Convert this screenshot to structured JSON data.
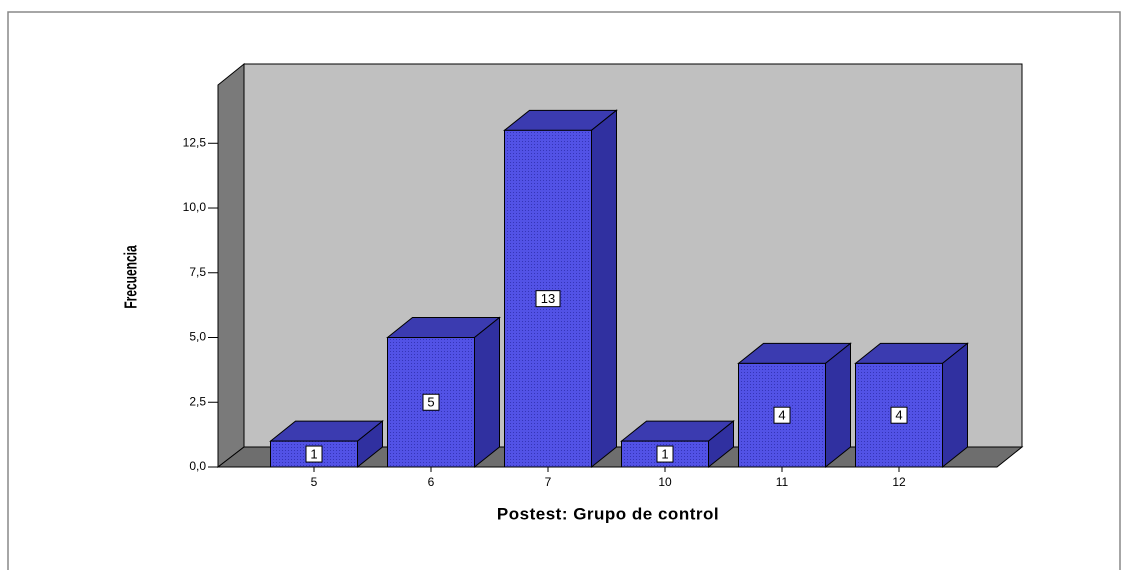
{
  "chart_data": {
    "type": "bar3d",
    "x_label": "Postest: Grupo de control",
    "y_label": "Frecuencia",
    "categories": [
      "5",
      "6",
      "7",
      "10",
      "11",
      "12"
    ],
    "values": [
      1,
      5,
      13,
      1,
      4,
      4
    ],
    "color": "#4d4de0",
    "ylim": [
      0,
      14.75
    ],
    "yticks": [
      {
        "value": 0,
        "label": "0,0"
      },
      {
        "value": 2.5,
        "label": "2,5"
      },
      {
        "value": 5,
        "label": "5,0"
      },
      {
        "value": 7.5,
        "label": "7,5"
      },
      {
        "value": 10,
        "label": "10,0"
      },
      {
        "value": 12.5,
        "label": "12,5"
      }
    ],
    "grid": false
  }
}
